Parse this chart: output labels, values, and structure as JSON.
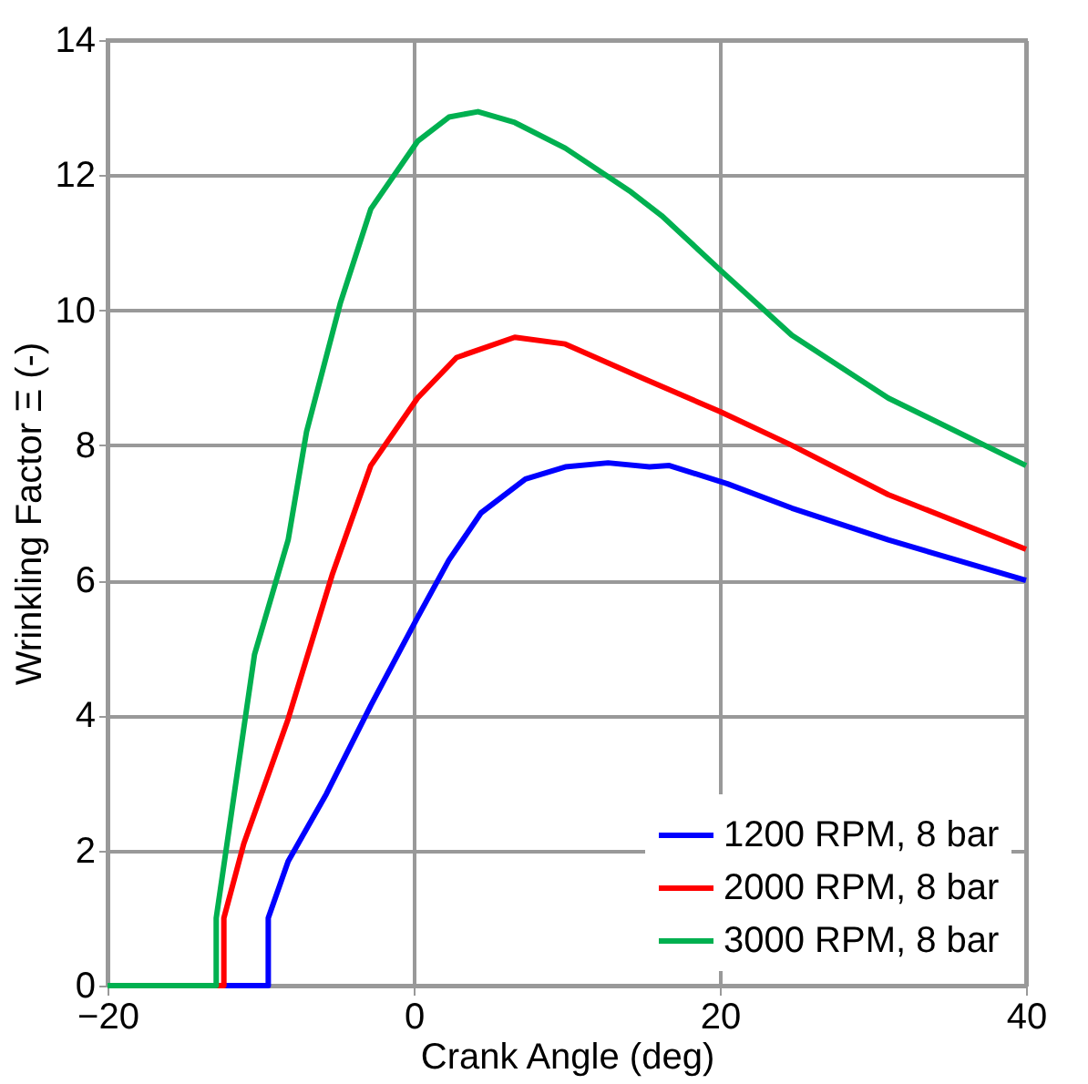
{
  "chart_data": {
    "type": "line",
    "xlabel": "Crank Angle (deg)",
    "ylabel": "Wrinkling Factor Ξ (-)",
    "xlim": [
      -20,
      40
    ],
    "xticks": [
      -20,
      0,
      20,
      40
    ],
    "ylim": [
      0,
      14
    ],
    "yticks": [
      0,
      2,
      4,
      6,
      8,
      10,
      12,
      14
    ],
    "grid": true,
    "legend": "bottom right",
    "marker": "none",
    "line_style": "solid",
    "series": [
      {
        "name": "1200 RPM, 8 bar",
        "color": "#0000ff",
        "x": [
          -20,
          -9.5,
          -9.5,
          -8.2,
          -5.7,
          -2.8,
          0.25,
          2.3,
          4.4,
          7.3,
          9.9,
          12.7,
          15.4,
          16.7,
          20.5,
          24.7,
          31,
          40
        ],
        "values": [
          0,
          0,
          1.0,
          1.84,
          2.84,
          4.15,
          5.45,
          6.3,
          7.0,
          7.5,
          7.68,
          7.74,
          7.68,
          7.7,
          7.43,
          7.07,
          6.6,
          6.0
        ]
      },
      {
        "name": "2000 RPM, 8 bar",
        "color": "#ff0000",
        "x": [
          -20,
          -12.4,
          -12.4,
          -11.1,
          -8.2,
          -5.3,
          -2.8,
          0.25,
          2.8,
          6.6,
          9.9,
          14.9,
          20,
          24.7,
          31,
          40
        ],
        "values": [
          0,
          0,
          1.0,
          2.1,
          3.95,
          6.1,
          7.7,
          8.7,
          9.3,
          9.6,
          9.5,
          9.0,
          8.5,
          8.0,
          7.27,
          6.46
        ]
      },
      {
        "name": "3000 RPM, 8 bar",
        "color": "#00b050",
        "x": [
          -20,
          -12.9,
          -12.9,
          -10.4,
          -8.2,
          -7,
          -4.8,
          -2.8,
          0.25,
          2.3,
          4.2,
          6.6,
          9.9,
          14.2,
          16.2,
          20,
          24.7,
          31,
          40
        ],
        "values": [
          0,
          0,
          1.0,
          4.9,
          6.6,
          8.2,
          10.1,
          11.5,
          12.5,
          12.86,
          12.94,
          12.78,
          12.4,
          11.75,
          11.4,
          10.6,
          9.63,
          8.7,
          7.7
        ]
      }
    ]
  }
}
